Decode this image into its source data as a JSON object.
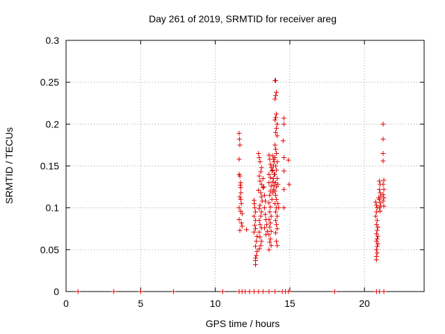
{
  "chart_data": {
    "type": "scatter",
    "title": "Day 261 of 2019, SRMTID for receiver areg",
    "xlabel": "GPS time / hours",
    "ylabel": "SRMTID / TECUs",
    "xlim": [
      0,
      24
    ],
    "ylim": [
      0,
      0.3
    ],
    "x_ticks": [
      0,
      5,
      10,
      15,
      20
    ],
    "x_tick_labels": [
      "0",
      "5",
      "10",
      "15",
      "20"
    ],
    "y_ticks": [
      0,
      0.05,
      0.1,
      0.15,
      0.2,
      0.25,
      0.3
    ],
    "y_tick_labels": [
      "0",
      "0.05",
      "0.1",
      "0.15",
      "0.2",
      "0.25",
      "0.3"
    ],
    "grid": true,
    "marker": "plus",
    "color": "#e00000",
    "series": [
      {
        "name": "SRMTID",
        "points": [
          [
            0.8,
            0
          ],
          [
            3.2,
            0
          ],
          [
            5.0,
            0
          ],
          [
            7.2,
            0
          ],
          [
            10.5,
            0
          ],
          [
            11.6,
            0
          ],
          [
            11.8,
            0
          ],
          [
            12.0,
            0
          ],
          [
            12.3,
            0
          ],
          [
            12.6,
            0
          ],
          [
            12.9,
            0
          ],
          [
            13.2,
            0
          ],
          [
            13.6,
            0
          ],
          [
            14.0,
            0
          ],
          [
            14.5,
            0
          ],
          [
            14.7,
            0
          ],
          [
            14.9,
            0
          ],
          [
            18.0,
            0
          ],
          [
            20.8,
            0
          ],
          [
            21.0,
            0
          ],
          [
            21.3,
            0
          ],
          [
            11.6,
            0.189
          ],
          [
            11.62,
            0.182
          ],
          [
            11.65,
            0.175
          ],
          [
            11.6,
            0.158
          ],
          [
            11.6,
            0.14
          ],
          [
            11.65,
            0.138
          ],
          [
            11.7,
            0.13
          ],
          [
            11.68,
            0.127
          ],
          [
            11.7,
            0.124
          ],
          [
            11.72,
            0.118
          ],
          [
            11.65,
            0.113
          ],
          [
            11.7,
            0.11
          ],
          [
            11.75,
            0.105
          ],
          [
            11.6,
            0.1
          ],
          [
            11.7,
            0.096
          ],
          [
            11.8,
            0.093
          ],
          [
            11.6,
            0.086
          ],
          [
            11.75,
            0.082
          ],
          [
            11.8,
            0.078
          ],
          [
            11.65,
            0.073
          ],
          [
            12.1,
            0.074
          ],
          [
            12.6,
            0.109
          ],
          [
            12.62,
            0.105
          ],
          [
            12.65,
            0.1
          ],
          [
            12.7,
            0.095
          ],
          [
            12.6,
            0.09
          ],
          [
            12.7,
            0.085
          ],
          [
            12.65,
            0.079
          ],
          [
            12.7,
            0.075
          ],
          [
            12.6,
            0.071
          ],
          [
            12.8,
            0.066
          ],
          [
            12.75,
            0.06
          ],
          [
            12.7,
            0.054
          ],
          [
            12.8,
            0.048
          ],
          [
            12.75,
            0.043
          ],
          [
            12.7,
            0.04
          ],
          [
            12.7,
            0.037
          ],
          [
            12.7,
            0.032
          ],
          [
            12.9,
            0.165
          ],
          [
            12.95,
            0.16
          ],
          [
            13.0,
            0.155
          ],
          [
            13.1,
            0.148
          ],
          [
            13.05,
            0.143
          ],
          [
            12.95,
            0.138
          ],
          [
            13.0,
            0.132
          ],
          [
            13.1,
            0.128
          ],
          [
            13.2,
            0.124
          ],
          [
            12.9,
            0.121
          ],
          [
            13.05,
            0.118
          ],
          [
            13.1,
            0.113
          ],
          [
            13.15,
            0.108
          ],
          [
            13.0,
            0.103
          ],
          [
            12.95,
            0.099
          ],
          [
            13.1,
            0.095
          ],
          [
            13.05,
            0.09
          ],
          [
            12.95,
            0.085
          ],
          [
            13.0,
            0.08
          ],
          [
            13.1,
            0.076
          ],
          [
            12.95,
            0.071
          ],
          [
            13.0,
            0.065
          ],
          [
            13.1,
            0.06
          ],
          [
            13.05,
            0.055
          ],
          [
            12.95,
            0.051
          ],
          [
            13.2,
            0.135
          ],
          [
            13.25,
            0.125
          ],
          [
            13.3,
            0.115
          ],
          [
            13.35,
            0.108
          ],
          [
            13.3,
            0.1
          ],
          [
            13.35,
            0.092
          ],
          [
            13.4,
            0.086
          ],
          [
            13.45,
            0.08
          ],
          [
            13.3,
            0.076
          ],
          [
            13.5,
            0.072
          ],
          [
            13.4,
            0.068
          ],
          [
            13.6,
            0.163
          ],
          [
            13.65,
            0.158
          ],
          [
            13.7,
            0.152
          ],
          [
            13.75,
            0.148
          ],
          [
            13.8,
            0.144
          ],
          [
            13.6,
            0.14
          ],
          [
            13.7,
            0.136
          ],
          [
            13.6,
            0.13
          ],
          [
            13.75,
            0.126
          ],
          [
            13.7,
            0.12
          ],
          [
            13.65,
            0.115
          ],
          [
            13.8,
            0.11
          ],
          [
            13.6,
            0.106
          ],
          [
            13.7,
            0.101
          ],
          [
            13.65,
            0.095
          ],
          [
            13.75,
            0.09
          ],
          [
            13.6,
            0.086
          ],
          [
            13.7,
            0.082
          ],
          [
            13.65,
            0.077
          ],
          [
            13.75,
            0.072
          ],
          [
            13.6,
            0.068
          ],
          [
            13.7,
            0.063
          ],
          [
            13.65,
            0.059
          ],
          [
            13.75,
            0.055
          ],
          [
            13.6,
            0.05
          ],
          [
            13.85,
            0.162
          ],
          [
            13.9,
            0.158
          ],
          [
            13.95,
            0.155
          ],
          [
            13.9,
            0.15
          ],
          [
            13.85,
            0.145
          ],
          [
            13.95,
            0.14
          ],
          [
            13.9,
            0.135
          ],
          [
            13.85,
            0.131
          ],
          [
            13.95,
            0.127
          ],
          [
            13.9,
            0.122
          ],
          [
            13.85,
            0.118
          ],
          [
            14.0,
            0.252
          ],
          [
            14.05,
            0.252
          ],
          [
            14.1,
            0.238
          ],
          [
            14.05,
            0.234
          ],
          [
            14.0,
            0.23
          ],
          [
            14.1,
            0.212
          ],
          [
            14.05,
            0.208
          ],
          [
            14.0,
            0.205
          ],
          [
            14.15,
            0.2
          ],
          [
            14.1,
            0.195
          ],
          [
            14.05,
            0.19
          ],
          [
            14.15,
            0.186
          ],
          [
            14.0,
            0.175
          ],
          [
            14.05,
            0.17
          ],
          [
            14.1,
            0.165
          ],
          [
            14.0,
            0.16
          ],
          [
            14.15,
            0.155
          ],
          [
            14.05,
            0.15
          ],
          [
            14.1,
            0.145
          ],
          [
            14.0,
            0.14
          ],
          [
            14.15,
            0.135
          ],
          [
            14.05,
            0.13
          ],
          [
            14.1,
            0.125
          ],
          [
            14.0,
            0.12
          ],
          [
            14.05,
            0.115
          ],
          [
            14.1,
            0.11
          ],
          [
            14.0,
            0.105
          ],
          [
            14.1,
            0.1
          ],
          [
            14.05,
            0.095
          ],
          [
            14.15,
            0.09
          ],
          [
            14.05,
            0.085
          ],
          [
            14.1,
            0.08
          ],
          [
            14.15,
            0.075
          ],
          [
            14.05,
            0.07
          ],
          [
            14.1,
            0.06
          ],
          [
            14.15,
            0.055
          ],
          [
            14.2,
            0.128
          ],
          [
            14.2,
            0.105
          ],
          [
            14.25,
            0.1
          ],
          [
            14.6,
            0.207
          ],
          [
            14.6,
            0.2
          ],
          [
            14.55,
            0.18
          ],
          [
            14.6,
            0.16
          ],
          [
            14.6,
            0.144
          ],
          [
            14.6,
            0.122
          ],
          [
            14.6,
            0.1
          ],
          [
            14.9,
            0.157
          ],
          [
            14.95,
            0.128
          ],
          [
            20.75,
            0.107
          ],
          [
            20.8,
            0.103
          ],
          [
            20.85,
            0.1
          ],
          [
            20.8,
            0.095
          ],
          [
            20.75,
            0.09
          ],
          [
            20.85,
            0.085
          ],
          [
            20.8,
            0.08
          ],
          [
            20.9,
            0.077
          ],
          [
            20.85,
            0.073
          ],
          [
            20.8,
            0.069
          ],
          [
            20.9,
            0.066
          ],
          [
            20.85,
            0.063
          ],
          [
            20.8,
            0.06
          ],
          [
            20.9,
            0.057
          ],
          [
            20.85,
            0.054
          ],
          [
            20.8,
            0.05
          ],
          [
            20.85,
            0.046
          ],
          [
            20.8,
            0.042
          ],
          [
            20.8,
            0.038
          ],
          [
            21.0,
            0.132
          ],
          [
            21.05,
            0.128
          ],
          [
            21.0,
            0.122
          ],
          [
            21.05,
            0.118
          ],
          [
            21.1,
            0.114
          ],
          [
            21.0,
            0.11
          ],
          [
            21.05,
            0.106
          ],
          [
            21.1,
            0.102
          ],
          [
            21.0,
            0.1
          ],
          [
            21.05,
            0.096
          ],
          [
            20.95,
            0.112
          ],
          [
            21.25,
            0.2
          ],
          [
            21.25,
            0.182
          ],
          [
            21.25,
            0.165
          ],
          [
            21.25,
            0.156
          ],
          [
            21.3,
            0.133
          ],
          [
            21.25,
            0.128
          ],
          [
            21.3,
            0.122
          ],
          [
            21.25,
            0.116
          ],
          [
            21.3,
            0.112
          ],
          [
            21.25,
            0.108
          ],
          [
            21.3,
            0.102
          ]
        ]
      }
    ]
  }
}
